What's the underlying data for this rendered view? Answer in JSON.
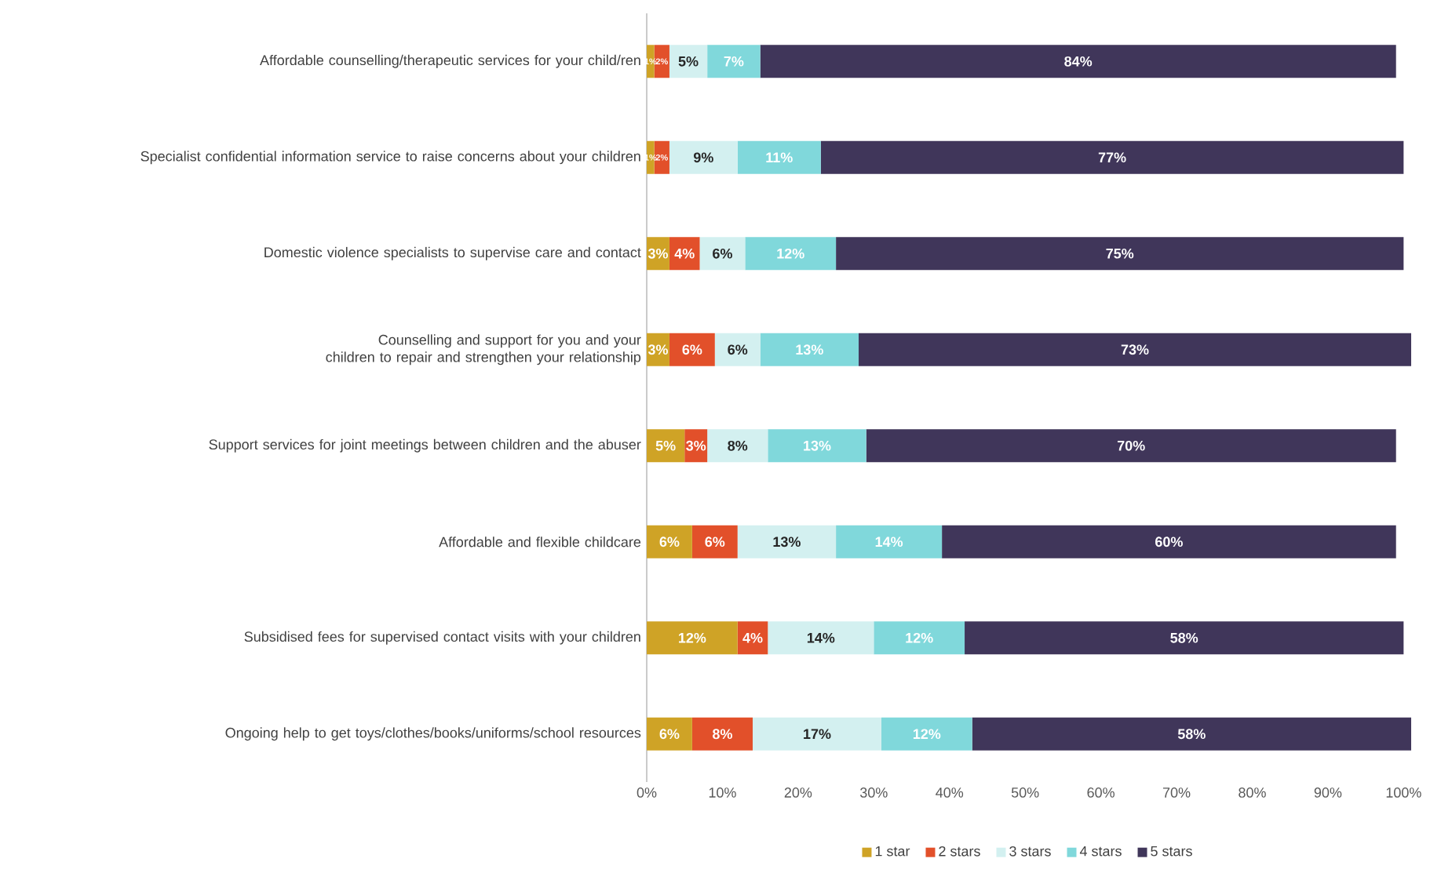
{
  "chart_data": {
    "type": "bar",
    "orientation": "horizontal",
    "stacked": true,
    "legend": "bottom",
    "categories": [
      "Affordable counselling/therapeutic services for your child/ren",
      "Specialist confidential information service to raise concerns about your children",
      "Domestic violence specialists to supervise care and contact",
      "Counselling and support for you and your children to repair and strengthen your relationship",
      "Support services for joint meetings between children and the abuser",
      "Affordable and flexible childcare",
      "Subsidised fees for supervised contact visits with your children",
      "Ongoing help to get toys/clothes/books/uniforms/school resources"
    ],
    "xlim": [
      0,
      101
    ],
    "xticks": [
      {
        "value": 0,
        "label": "0%"
      },
      {
        "value": 10,
        "label": "10%"
      },
      {
        "value": 20,
        "label": "20%"
      },
      {
        "value": 30,
        "label": "30%"
      },
      {
        "value": 40,
        "label": "40%"
      },
      {
        "value": 50,
        "label": "50%"
      },
      {
        "value": 60,
        "label": "60%"
      },
      {
        "value": 70,
        "label": "70%"
      },
      {
        "value": 80,
        "label": "80%"
      },
      {
        "value": 90,
        "label": "90%"
      },
      {
        "value": 100,
        "label": "100%"
      }
    ],
    "series": [
      {
        "name": "1 star",
        "color": "#cfa326",
        "values": [
          1,
          1,
          3,
          3,
          5,
          6,
          12,
          6
        ],
        "value_labels": [
          "1%",
          "1%",
          "3%",
          "3%",
          "5%",
          "6%",
          "12%",
          "6%"
        ]
      },
      {
        "name": "2 stars",
        "color": "#e2502a",
        "values": [
          2,
          2,
          4,
          6,
          3,
          6,
          4,
          8
        ],
        "value_labels": [
          "2%",
          "2%",
          "4%",
          "6%",
          "3%",
          "6%",
          "4%",
          "8%"
        ]
      },
      {
        "name": "3 stars",
        "color": "#d3f0f0",
        "values": [
          5,
          9,
          6,
          6,
          8,
          13,
          14,
          17
        ],
        "value_labels": [
          "5%",
          "9%",
          "6%",
          "6%",
          "8%",
          "13%",
          "14%",
          "17%"
        ]
      },
      {
        "name": "4 stars",
        "color": "#80d8db",
        "values": [
          7,
          11,
          12,
          13,
          13,
          14,
          12,
          12
        ],
        "value_labels": [
          "7%",
          "11%",
          "12%",
          "13%",
          "13%",
          "14%",
          "12%",
          "12%"
        ]
      },
      {
        "name": "5 stars",
        "color": "#40365a",
        "values": [
          84,
          77,
          75,
          73,
          70,
          60,
          58,
          58
        ],
        "value_labels": [
          "84%",
          "77%",
          "75%",
          "73%",
          "70%",
          "60%",
          "58%",
          "58%"
        ]
      }
    ]
  }
}
